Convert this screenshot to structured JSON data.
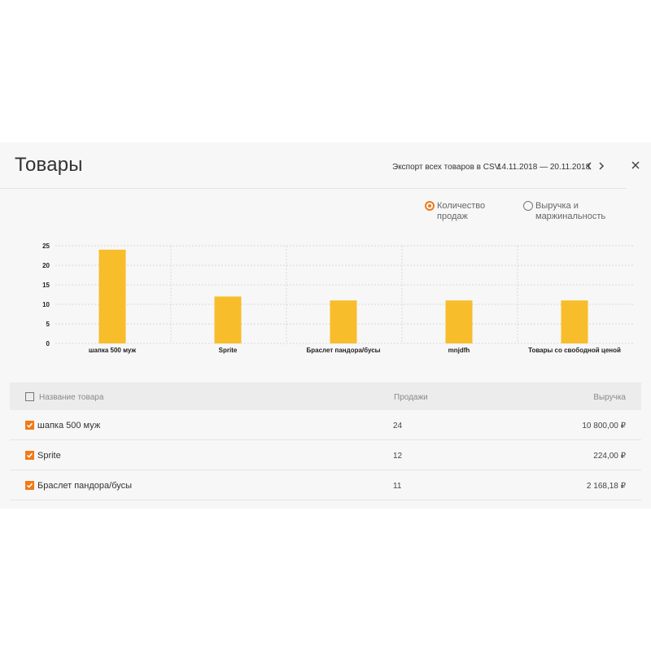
{
  "header": {
    "title": "Товары",
    "export_label": "Экспорт всех товаров в CSV",
    "date_range": "14.11.2018 — 20.11.2018",
    "prev_arrow": "‹",
    "next_arrow": "›"
  },
  "metric_options": [
    {
      "label_line1": "Количество",
      "label_line2": "продаж",
      "selected": true
    },
    {
      "label_line1": "Выручка и",
      "label_line2": "маржинальность",
      "selected": false
    }
  ],
  "chart_data": {
    "type": "bar",
    "title": "",
    "xlabel": "",
    "ylabel": "",
    "categories": [
      "шапка 500 муж",
      "Sprite",
      "Браслет пандора/бусы",
      "mnjdfh",
      "Товары со свободной ценой"
    ],
    "values": [
      24,
      12,
      11,
      11,
      11
    ],
    "ylim": [
      0,
      25
    ],
    "yticks": [
      0,
      5,
      10,
      15,
      20,
      25
    ],
    "bar_color": "#f7bd2b",
    "grid": true
  },
  "table": {
    "columns": {
      "name": "Название товара",
      "sales": "Продажи",
      "revenue": "Выручка"
    },
    "rows": [
      {
        "name": "шапка 500 муж",
        "sales": "24",
        "revenue": "10 800,00 ₽",
        "checked": true
      },
      {
        "name": "Sprite",
        "sales": "12",
        "revenue": "224,00 ₽",
        "checked": true
      },
      {
        "name": "Браслет пандора/бусы",
        "sales": "11",
        "revenue": "2 168,18 ₽",
        "checked": true
      }
    ]
  },
  "colors": {
    "accent": "#f07a16",
    "bar": "#f7bd2b"
  }
}
